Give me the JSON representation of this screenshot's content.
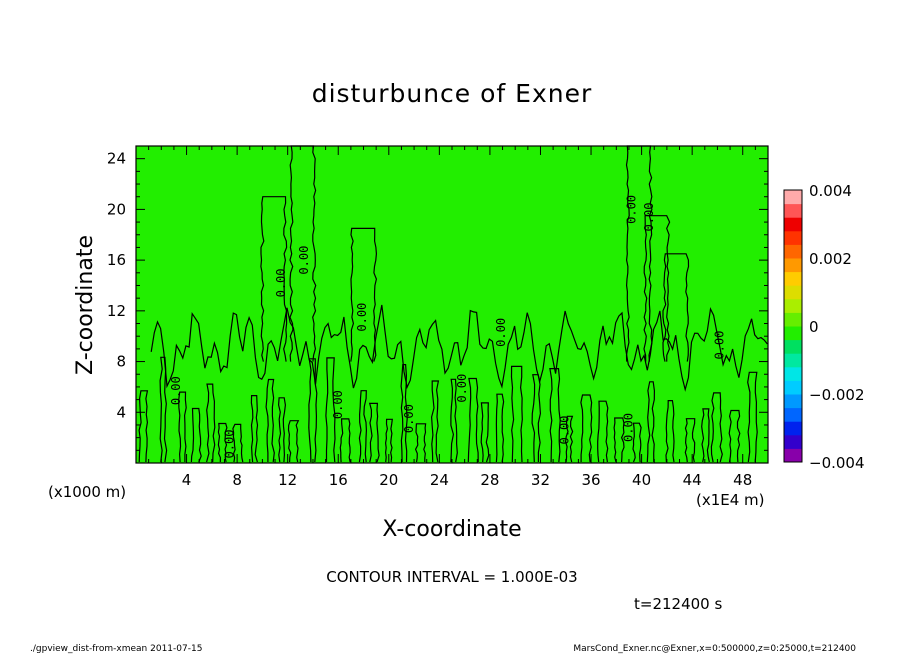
{
  "chart_data": {
    "type": "heatmap",
    "title": "disturbunce of Exner",
    "xlabel": "X-coordinate",
    "ylabel": "Z-coordinate",
    "x_units_left": "(x1000 m)",
    "x_units_right": "(x1E4 m)",
    "x_ticks": [
      "4",
      "8",
      "12",
      "16",
      "20",
      "24",
      "28",
      "32",
      "36",
      "40",
      "44",
      "48"
    ],
    "x_tick_values": [
      4,
      8,
      12,
      16,
      20,
      24,
      28,
      32,
      36,
      40,
      44,
      48
    ],
    "y_ticks": [
      "4",
      "8",
      "12",
      "16",
      "20",
      "24"
    ],
    "y_tick_values": [
      4,
      8,
      12,
      16,
      20,
      24
    ],
    "xlim": [
      0,
      50
    ],
    "ylim": [
      0,
      25
    ],
    "colorbar": {
      "ticks": [
        "0.004",
        "0.002",
        "0",
        "−0.002",
        "−0.004"
      ],
      "tick_values": [
        0.004,
        0.002,
        0,
        -0.002,
        -0.004
      ],
      "range": [
        -0.004,
        0.004
      ],
      "colors": [
        "#8800aa",
        "#3300cc",
        "#0022ee",
        "#0066ff",
        "#0099ff",
        "#00ccff",
        "#00e6e6",
        "#00e8a0",
        "#00e060",
        "#22ee00",
        "#66ee00",
        "#aaee00",
        "#dddd00",
        "#ffcc00",
        "#ff9900",
        "#ff6600",
        "#ff3300",
        "#ee0000",
        "#ff5555",
        "#ffaaaa"
      ]
    },
    "contour_label": "0.00",
    "contour_interval_text": "CONTOUR INTERVAL = 1.000E-03",
    "time_text": "t=212400 s",
    "background_color": "#22ee00"
  },
  "footer": {
    "left": "./gpview_dist-from-xmean  2011-07-15",
    "right": "MarsCond_Exner.nc@Exner,x=0:500000,z=0:25000,t=212400"
  }
}
